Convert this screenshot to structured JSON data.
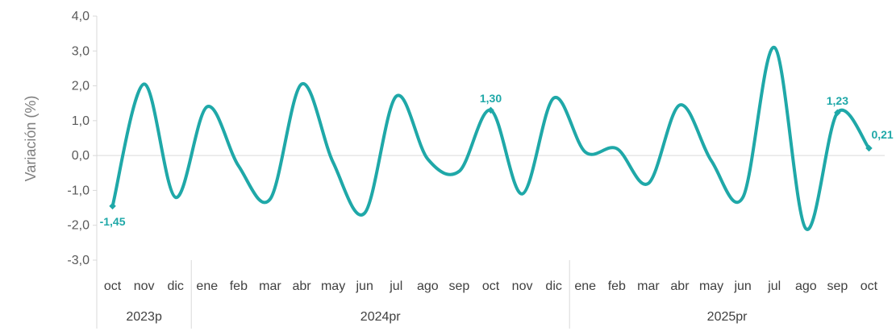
{
  "chart_data": {
    "type": "line",
    "ylabel": "Variación (%)",
    "ylim": [
      -3,
      4
    ],
    "yticks": [
      "4,0",
      "3,0",
      "2,0",
      "1,0",
      "0,0",
      "-1,0",
      "-2,0",
      "-3,0"
    ],
    "categories": [
      "oct",
      "nov",
      "dic",
      "ene",
      "feb",
      "mar",
      "abr",
      "may",
      "jun",
      "jul",
      "ago",
      "sep",
      "oct",
      "nov",
      "dic",
      "ene",
      "feb",
      "mar",
      "abr",
      "may",
      "jun",
      "jul",
      "ago",
      "sep",
      "oct"
    ],
    "year_groups": [
      {
        "label": "2023p",
        "count": 3
      },
      {
        "label": "2024pr",
        "count": 12
      },
      {
        "label": "2025pr",
        "count": 10
      }
    ],
    "series": [
      {
        "color": "#1fa8a8",
        "values": [
          -1.45,
          2.05,
          -1.2,
          1.4,
          -0.3,
          -1.25,
          2.05,
          -0.2,
          -1.65,
          1.7,
          -0.1,
          -0.45,
          1.3,
          -1.1,
          1.65,
          0.1,
          0.2,
          -0.8,
          1.45,
          -0.15,
          -1.2,
          3.1,
          -2.1,
          1.23,
          0.21
        ]
      }
    ],
    "data_labels": [
      {
        "index": 0,
        "text": "-1,45"
      },
      {
        "index": 12,
        "text": "1,30"
      },
      {
        "index": 23,
        "text": "1,23"
      },
      {
        "index": 24,
        "text": "0,21"
      }
    ],
    "zero_line": true,
    "grid": false,
    "legend": "none"
  }
}
